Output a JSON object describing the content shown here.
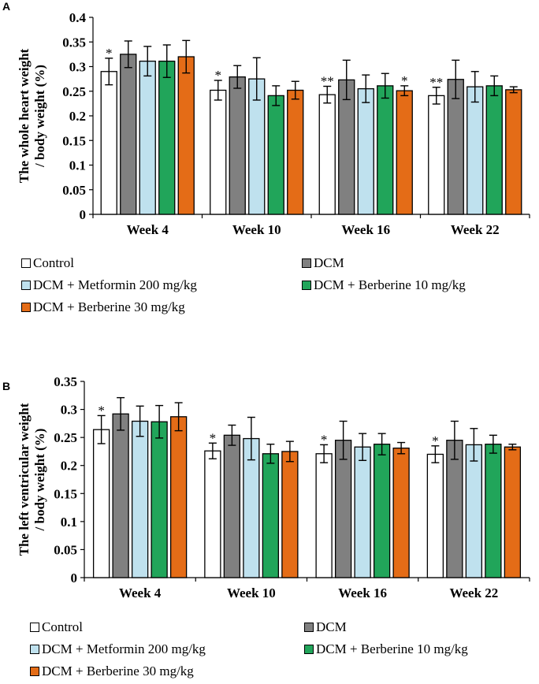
{
  "chart_data": [
    {
      "panel": "A",
      "type": "bar",
      "title": "",
      "xlabel": "",
      "ylabel": "The whole heart weight / body weight (%)",
      "ylabel_lines": [
        "The whole heart weight",
        "/ body weight (%)"
      ],
      "ylim": [
        0,
        0.4
      ],
      "yticks": [
        0,
        0.05,
        0.1,
        0.15,
        0.2,
        0.25,
        0.3,
        0.35,
        0.4
      ],
      "ytick_labels": [
        "0",
        "0.05",
        "0.1",
        "0.15",
        "0.2",
        "0.25",
        "0.3",
        "0.35",
        "0.4"
      ],
      "categories": [
        "Week 4",
        "Week 10",
        "Week 16",
        "Week 22"
      ],
      "grid": false,
      "legend_position": "bottom",
      "series": [
        {
          "name": "Control",
          "color": "#ffffff",
          "values": [
            0.29,
            0.252,
            0.243,
            0.241
          ],
          "errors": [
            0.027,
            0.02,
            0.017,
            0.017
          ]
        },
        {
          "name": "DCM",
          "color": "#808080",
          "values": [
            0.325,
            0.279,
            0.273,
            0.274
          ],
          "errors": [
            0.027,
            0.023,
            0.04,
            0.039
          ]
        },
        {
          "name": "DCM + Metformin 200 mg/kg",
          "color": "#bfe1ee",
          "values": [
            0.311,
            0.275,
            0.255,
            0.259
          ],
          "errors": [
            0.03,
            0.043,
            0.028,
            0.031
          ]
        },
        {
          "name": "DCM + Berberine 10 mg/kg",
          "color": "#21a55a",
          "values": [
            0.311,
            0.241,
            0.261,
            0.261
          ],
          "errors": [
            0.033,
            0.02,
            0.025,
            0.02
          ]
        },
        {
          "name": "DCM + Berberine 30 mg/kg",
          "color": "#e46c17",
          "values": [
            0.32,
            0.252,
            0.251,
            0.253
          ],
          "errors": [
            0.033,
            0.018,
            0.01,
            0.006
          ]
        }
      ],
      "annotations": [
        {
          "text": "*",
          "category": 0,
          "series": 0
        },
        {
          "text": "*",
          "category": 1,
          "series": 0
        },
        {
          "text": "**",
          "category": 2,
          "series": 0
        },
        {
          "text": "*",
          "category": 2,
          "series": 4
        },
        {
          "text": "**",
          "category": 3,
          "series": 0
        }
      ]
    },
    {
      "panel": "B",
      "type": "bar",
      "title": "",
      "xlabel": "",
      "ylabel": "The left ventricular weight / body weight (%)",
      "ylabel_lines": [
        "The left ventricular weight",
        "/ body weight (%)"
      ],
      "ylim": [
        0,
        0.35
      ],
      "yticks": [
        0,
        0.05,
        0.1,
        0.15,
        0.2,
        0.25,
        0.3,
        0.35
      ],
      "ytick_labels": [
        "0",
        "0.05",
        "0.1",
        "0.15",
        "0.2",
        "0.25",
        "0.3",
        "0.35"
      ],
      "categories": [
        "Week 4",
        "Week 10",
        "Week 16",
        "Week 22"
      ],
      "grid": false,
      "legend_position": "bottom",
      "series": [
        {
          "name": "Control",
          "color": "#ffffff",
          "values": [
            0.264,
            0.226,
            0.221,
            0.22
          ],
          "errors": [
            0.025,
            0.014,
            0.016,
            0.015
          ]
        },
        {
          "name": "DCM",
          "color": "#808080",
          "values": [
            0.292,
            0.254,
            0.245,
            0.245
          ],
          "errors": [
            0.029,
            0.018,
            0.034,
            0.034
          ]
        },
        {
          "name": "DCM + Metformin 200 mg/kg",
          "color": "#bfe1ee",
          "values": [
            0.279,
            0.248,
            0.233,
            0.237
          ],
          "errors": [
            0.027,
            0.038,
            0.024,
            0.029
          ]
        },
        {
          "name": "DCM + Berberine 10 mg/kg",
          "color": "#21a55a",
          "values": [
            0.278,
            0.221,
            0.238,
            0.238
          ],
          "errors": [
            0.029,
            0.017,
            0.019,
            0.016
          ]
        },
        {
          "name": "DCM + Berberine 30 mg/kg",
          "color": "#e46c17",
          "values": [
            0.287,
            0.225,
            0.231,
            0.233
          ],
          "errors": [
            0.025,
            0.018,
            0.01,
            0.005
          ]
        }
      ],
      "annotations": [
        {
          "text": "*",
          "category": 0,
          "series": 0
        },
        {
          "text": "*",
          "category": 1,
          "series": 0
        },
        {
          "text": "*",
          "category": 2,
          "series": 0
        },
        {
          "text": "*",
          "category": 3,
          "series": 0
        }
      ]
    }
  ],
  "panels": [
    {
      "letter": "A"
    },
    {
      "letter": "B"
    }
  ],
  "legend": {
    "items": [
      {
        "label": "Control",
        "color": "#ffffff"
      },
      {
        "label": "DCM",
        "color": "#808080"
      },
      {
        "label": "DCM + Metformin 200 mg/kg",
        "color": "#bfe1ee"
      },
      {
        "label": "DCM + Berberine 10 mg/kg",
        "color": "#21a55a"
      },
      {
        "label": "DCM + Berberine 30 mg/kg",
        "color": "#e46c17"
      }
    ]
  }
}
